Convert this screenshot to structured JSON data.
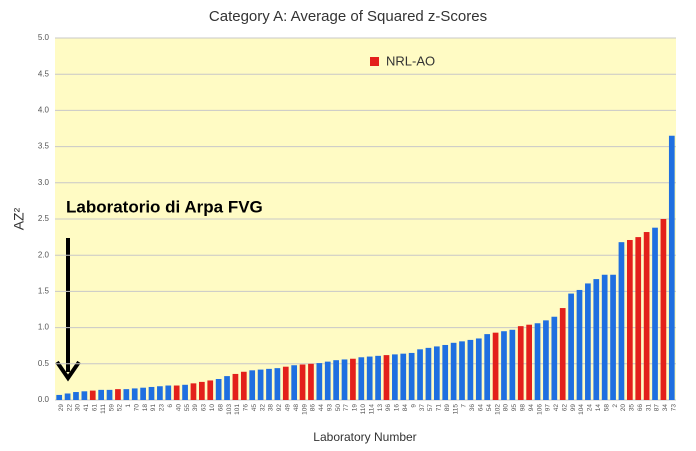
{
  "chart_data": {
    "type": "bar",
    "title": "Category A: Average of Squared z-Scores",
    "xlabel": "Laboratory Number",
    "ylabel": "AZ²",
    "annotation": "Laboratorio di Arpa FVG",
    "categories": [
      "29",
      "22",
      "30",
      "41",
      "61",
      "111",
      "59",
      "52",
      "1",
      "70",
      "18",
      "91",
      "23",
      "6",
      "40",
      "55",
      "39",
      "63",
      "10",
      "68",
      "103",
      "101",
      "76",
      "45",
      "32",
      "38",
      "92",
      "49",
      "48",
      "109",
      "86",
      "44",
      "93",
      "50",
      "77",
      "19",
      "110",
      "114",
      "13",
      "96",
      "16",
      "84",
      "9",
      "37",
      "57",
      "71",
      "89",
      "115",
      "7",
      "36",
      "64",
      "54",
      "102",
      "80",
      "95",
      "98",
      "94",
      "106",
      "97",
      "42",
      "62",
      "99",
      "104",
      "24",
      "14",
      "58",
      "2",
      "20",
      "35",
      "66",
      "31",
      "87",
      "34",
      "73"
    ],
    "series": [
      {
        "name": "NRL-AO",
        "color": "#e3201b",
        "values": [
          0.07,
          0.09,
          0.11,
          0.12,
          0.13,
          0.14,
          0.14,
          0.15,
          0.15,
          0.16,
          0.17,
          0.18,
          0.19,
          0.2,
          0.2,
          0.21,
          0.23,
          0.25,
          0.27,
          0.29,
          0.33,
          0.36,
          0.39,
          0.41,
          0.42,
          0.43,
          0.44,
          0.46,
          0.48,
          0.49,
          0.5,
          0.51,
          0.53,
          0.55,
          0.56,
          0.57,
          0.59,
          0.6,
          0.61,
          0.62,
          0.63,
          0.64,
          0.65,
          0.7,
          0.72,
          0.74,
          0.76,
          0.79,
          0.81,
          0.83,
          0.85,
          0.91,
          0.93,
          0.95,
          0.97,
          1.02,
          1.04,
          1.06,
          1.1,
          1.15,
          1.27,
          1.47,
          1.52,
          1.61,
          1.67,
          1.73,
          1.73,
          2.18,
          2.21,
          2.25,
          2.32,
          2.38,
          2.5,
          3.65
        ],
        "colors": [
          "#1f6fe0",
          "#1f6fe0",
          "#1f6fe0",
          "#1f6fe0",
          "#e3201b",
          "#1f6fe0",
          "#1f6fe0",
          "#e3201b",
          "#1f6fe0",
          "#1f6fe0",
          "#1f6fe0",
          "#1f6fe0",
          "#1f6fe0",
          "#1f6fe0",
          "#e3201b",
          "#1f6fe0",
          "#e3201b",
          "#e3201b",
          "#e3201b",
          "#1f6fe0",
          "#1f6fe0",
          "#e3201b",
          "#e3201b",
          "#1f6fe0",
          "#1f6fe0",
          "#1f6fe0",
          "#1f6fe0",
          "#e3201b",
          "#1f6fe0",
          "#e3201b",
          "#e3201b",
          "#1f6fe0",
          "#1f6fe0",
          "#1f6fe0",
          "#1f6fe0",
          "#e3201b",
          "#1f6fe0",
          "#1f6fe0",
          "#1f6fe0",
          "#e3201b",
          "#1f6fe0",
          "#1f6fe0",
          "#1f6fe0",
          "#1f6fe0",
          "#1f6fe0",
          "#1f6fe0",
          "#1f6fe0",
          "#1f6fe0",
          "#1f6fe0",
          "#1f6fe0",
          "#1f6fe0",
          "#1f6fe0",
          "#e3201b",
          "#1f6fe0",
          "#1f6fe0",
          "#e3201b",
          "#e3201b",
          "#1f6fe0",
          "#1f6fe0",
          "#1f6fe0",
          "#e3201b",
          "#1f6fe0",
          "#1f6fe0",
          "#1f6fe0",
          "#1f6fe0",
          "#1f6fe0",
          "#1f6fe0",
          "#1f6fe0",
          "#e3201b",
          "#e3201b",
          "#e3201b",
          "#1f6fe0",
          "#e3201b",
          "#1f6fe0"
        ]
      }
    ],
    "ylim": [
      0,
      5
    ],
    "yticks": [
      {
        "value": 0,
        "label": "0.0"
      },
      {
        "value": 0.5,
        "label": "0.5"
      },
      {
        "value": 1,
        "label": "1.0"
      },
      {
        "value": 1.5,
        "label": "1.5"
      },
      {
        "value": 2,
        "label": "2.0"
      },
      {
        "value": 2.5,
        "label": "2.5"
      },
      {
        "value": 3,
        "label": "3.0"
      },
      {
        "value": 3.5,
        "label": "3.5"
      },
      {
        "value": 4,
        "label": "4.0"
      },
      {
        "value": 4.5,
        "label": "4.5"
      },
      {
        "value": 5,
        "label": "5.0"
      }
    ],
    "grid": true
  }
}
